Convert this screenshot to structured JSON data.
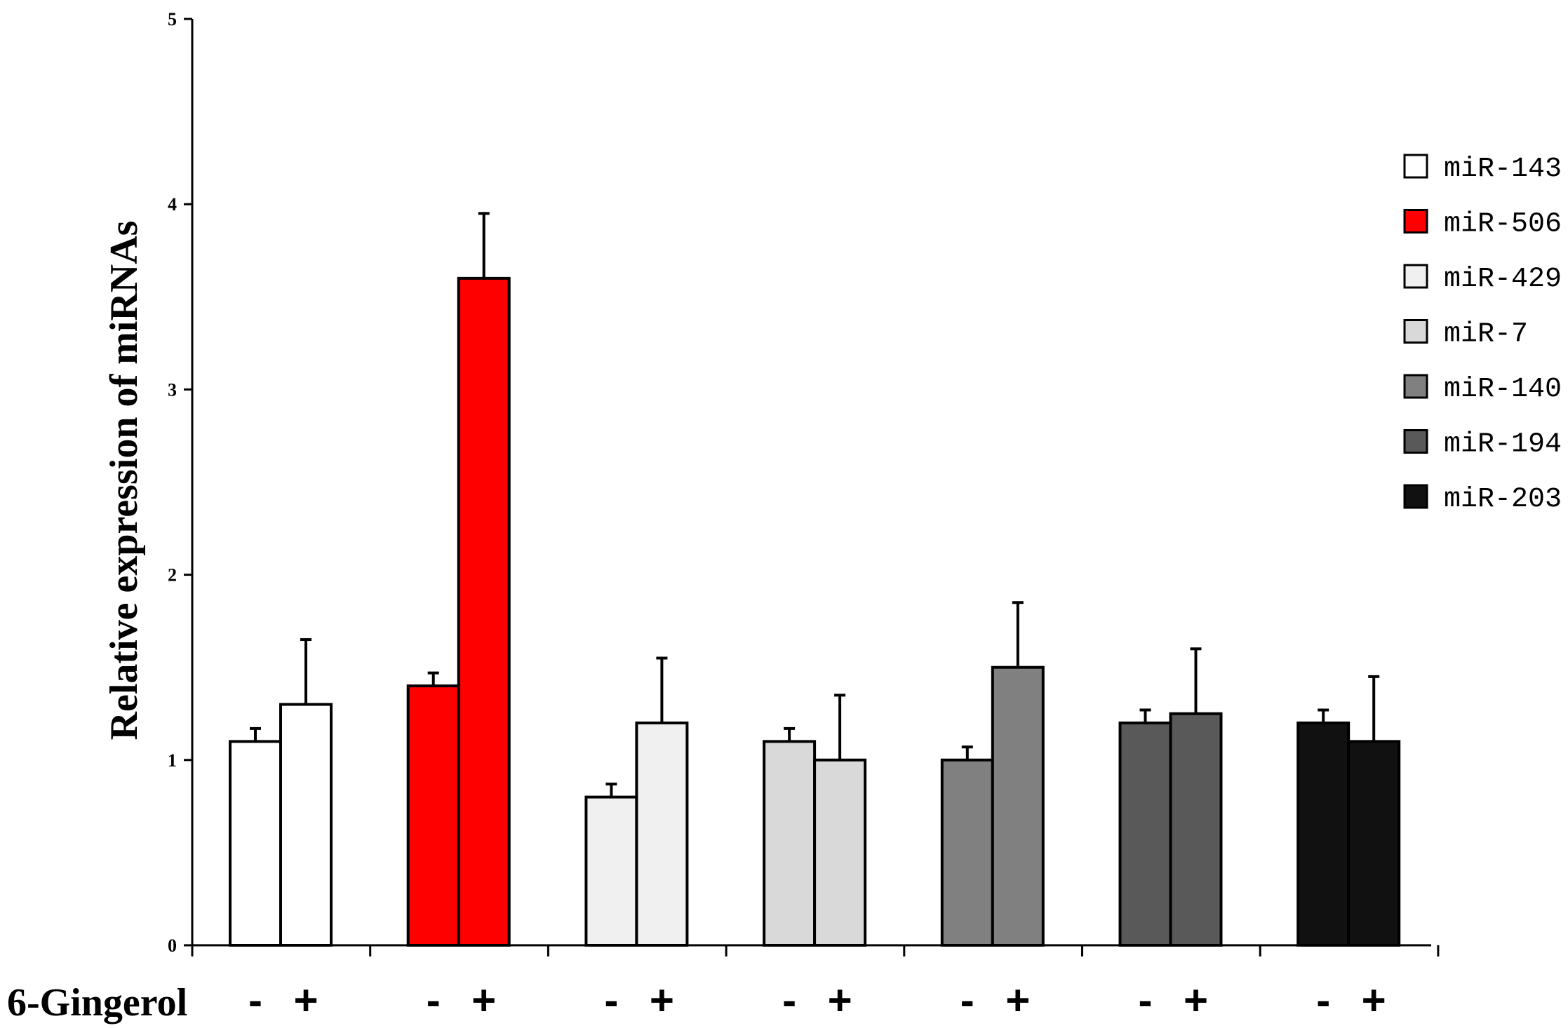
{
  "chart_data": {
    "type": "bar",
    "ylabel": "Relative expression of miRNAs",
    "ylim": [
      0,
      5
    ],
    "yticks": [
      "0",
      "1",
      "2",
      "3",
      "4",
      "5"
    ],
    "treatment_label": "6-Gingerol",
    "conditions": [
      "-",
      "+"
    ],
    "legend_position": "right",
    "series": [
      {
        "name": "miR-143",
        "color": "#ffffff",
        "values": [
          1.1,
          1.3
        ],
        "errors": [
          0.07,
          0.35
        ]
      },
      {
        "name": "miR-506",
        "color": "#ff0000",
        "values": [
          1.4,
          3.6
        ],
        "errors": [
          0.07,
          0.35
        ]
      },
      {
        "name": "miR-429",
        "color": "#f0f0f0",
        "values": [
          0.8,
          1.2
        ],
        "errors": [
          0.07,
          0.35
        ]
      },
      {
        "name": "miR-7",
        "color": "#d9d9d9",
        "values": [
          1.1,
          1.0
        ],
        "errors": [
          0.07,
          0.35
        ]
      },
      {
        "name": "miR-140",
        "color": "#808080",
        "values": [
          1.0,
          1.5
        ],
        "errors": [
          0.07,
          0.35
        ]
      },
      {
        "name": "miR-194",
        "color": "#595959",
        "values": [
          1.2,
          1.25
        ],
        "errors": [
          0.07,
          0.35
        ]
      },
      {
        "name": "miR-203",
        "color": "#111111",
        "values": [
          1.2,
          1.1
        ],
        "errors": [
          0.07,
          0.35
        ]
      }
    ]
  }
}
